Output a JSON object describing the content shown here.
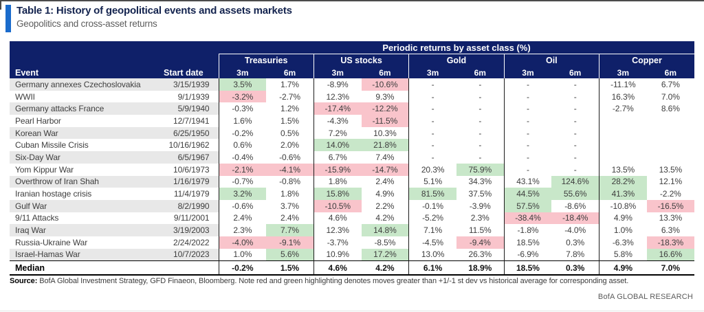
{
  "header": {
    "title": "Table 1: History of geopolitical events and assets markets",
    "subtitle": "Geopolitics and cross-asset returns"
  },
  "table": {
    "span_header": "Periodic returns by asset class (%)",
    "event_header": "Event",
    "date_header": "Start date",
    "groups": [
      "Treasuries",
      "US stocks",
      "Gold",
      "Oil",
      "Copper"
    ],
    "sub_headers": [
      "3m",
      "6m"
    ],
    "rows": [
      {
        "event": "Germany annexes Czechoslovakia",
        "date": "3/15/1939",
        "values": [
          "3.5%",
          "1.7%",
          "-8.9%",
          "-10.6%",
          "-",
          "-",
          "-",
          "-",
          "-11.1%",
          "6.7%"
        ],
        "hl": [
          "g",
          "",
          "",
          "r",
          "",
          "",
          "",
          "",
          "",
          ""
        ]
      },
      {
        "event": "WWII",
        "date": "9/1/1939",
        "values": [
          "-3.2%",
          "-2.7%",
          "12.3%",
          "9.3%",
          "-",
          "-",
          "-",
          "-",
          "16.3%",
          "7.0%"
        ],
        "hl": [
          "r",
          "",
          "",
          "",
          "",
          "",
          "",
          "",
          "",
          ""
        ]
      },
      {
        "event": "Germany attacks France",
        "date": "5/9/1940",
        "values": [
          "-0.3%",
          "1.2%",
          "-17.4%",
          "-12.2%",
          "-",
          "-",
          "-",
          "-",
          "-2.7%",
          "8.6%"
        ],
        "hl": [
          "",
          "",
          "r",
          "r",
          "",
          "",
          "",
          "",
          "",
          ""
        ]
      },
      {
        "event": "Pearl Harbor",
        "date": "12/7/1941",
        "values": [
          "1.6%",
          "1.5%",
          "-4.3%",
          "-11.5%",
          "-",
          "-",
          "-",
          "-",
          "",
          ""
        ],
        "hl": [
          "",
          "",
          "",
          "r",
          "",
          "",
          "",
          "",
          "",
          ""
        ]
      },
      {
        "event": "Korean War",
        "date": "6/25/1950",
        "values": [
          "-0.2%",
          "0.5%",
          "7.2%",
          "10.3%",
          "-",
          "-",
          "-",
          "-",
          "",
          ""
        ],
        "hl": [
          "",
          "",
          "",
          "",
          "",
          "",
          "",
          "",
          "",
          ""
        ]
      },
      {
        "event": "Cuban Missile Crisis",
        "date": "10/16/1962",
        "values": [
          "0.6%",
          "2.0%",
          "14.0%",
          "21.8%",
          "-",
          "-",
          "-",
          "-",
          "",
          ""
        ],
        "hl": [
          "",
          "",
          "g",
          "g",
          "",
          "",
          "",
          "",
          "",
          ""
        ]
      },
      {
        "event": "Six-Day War",
        "date": "6/5/1967",
        "values": [
          "-0.4%",
          "-0.6%",
          "6.7%",
          "7.4%",
          "-",
          "-",
          "-",
          "-",
          "",
          ""
        ],
        "hl": [
          "",
          "",
          "",
          "",
          "",
          "",
          "",
          "",
          "",
          ""
        ]
      },
      {
        "event": "Yom Kippur War",
        "date": "10/6/1973",
        "values": [
          "-2.1%",
          "-4.1%",
          "-15.9%",
          "-14.7%",
          "20.3%",
          "75.9%",
          "-",
          "-",
          "13.5%",
          "13.5%"
        ],
        "hl": [
          "r",
          "r",
          "r",
          "r",
          "",
          "g",
          "",
          "",
          "",
          ""
        ]
      },
      {
        "event": "Overthrow of Iran Shah",
        "date": "1/16/1979",
        "values": [
          "-0.7%",
          "-0.8%",
          "1.8%",
          "2.4%",
          "5.1%",
          "34.3%",
          "43.1%",
          "124.6%",
          "28.2%",
          "12.1%"
        ],
        "hl": [
          "",
          "",
          "",
          "",
          "",
          "",
          "",
          "g",
          "g",
          ""
        ]
      },
      {
        "event": "Iranian hostage crisis",
        "date": "11/4/1979",
        "values": [
          "3.2%",
          "1.8%",
          "15.8%",
          "4.9%",
          "81.5%",
          "37.5%",
          "44.5%",
          "55.6%",
          "41.3%",
          "-2.2%"
        ],
        "hl": [
          "g",
          "",
          "g",
          "",
          "g",
          "",
          "g",
          "g",
          "g",
          ""
        ]
      },
      {
        "event": "Gulf War",
        "date": "8/2/1990",
        "values": [
          "-0.6%",
          "3.7%",
          "-10.5%",
          "2.2%",
          "-0.1%",
          "-3.9%",
          "57.5%",
          "-8.6%",
          "-10.8%",
          "-16.5%"
        ],
        "hl": [
          "",
          "",
          "r",
          "",
          "",
          "",
          "g",
          "",
          "",
          "r"
        ]
      },
      {
        "event": "9/11 Attacks",
        "date": "9/11/2001",
        "values": [
          "2.4%",
          "2.4%",
          "4.6%",
          "4.2%",
          "-5.2%",
          "2.3%",
          "-38.4%",
          "-18.4%",
          "4.9%",
          "13.3%"
        ],
        "hl": [
          "",
          "",
          "",
          "",
          "",
          "",
          "r",
          "r",
          "",
          ""
        ]
      },
      {
        "event": "Iraq War",
        "date": "3/19/2003",
        "values": [
          "2.3%",
          "7.7%",
          "12.3%",
          "14.8%",
          "7.1%",
          "11.5%",
          "-1.8%",
          "-4.0%",
          "1.0%",
          "6.3%"
        ],
        "hl": [
          "",
          "g",
          "",
          "g",
          "",
          "",
          "",
          "",
          "",
          ""
        ]
      },
      {
        "event": "Russia-Ukraine War",
        "date": "2/24/2022",
        "values": [
          "-4.0%",
          "-9.1%",
          "-3.7%",
          "-8.5%",
          "-4.5%",
          "-9.4%",
          "18.5%",
          "0.3%",
          "-6.3%",
          "-18.3%"
        ],
        "hl": [
          "r",
          "r",
          "",
          "",
          "",
          "r",
          "",
          "",
          "",
          "r"
        ]
      },
      {
        "event": "Israel-Hamas War",
        "date": "10/7/2023",
        "values": [
          "1.0%",
          "5.6%",
          "10.9%",
          "17.2%",
          "13.0%",
          "26.3%",
          "-6.9%",
          "7.8%",
          "5.8%",
          "16.6%"
        ],
        "hl": [
          "",
          "g",
          "",
          "g",
          "",
          "",
          "",
          "",
          "",
          "g"
        ]
      }
    ],
    "median": {
      "label": "Median",
      "values": [
        "-0.2%",
        "1.5%",
        "4.6%",
        "4.2%",
        "6.1%",
        "18.9%",
        "18.5%",
        "0.3%",
        "4.9%",
        "7.0%"
      ]
    }
  },
  "footer": {
    "source_label": "Source:",
    "source_text": " BofA Global Investment Strategy, GFD Finaeon, Bloomberg. Note red and green highlighting denotes moves greater than +1/-1 st dev vs historical average for corresponding asset.",
    "brand": "BofA GLOBAL RESEARCH"
  },
  "colors": {
    "header_navy": "#0f2069",
    "accent_blue": "#1a6bcc",
    "highlight_green": "#c8e7c9",
    "highlight_red": "#f9c4cb",
    "row_stripe": "#e8e8e8"
  }
}
